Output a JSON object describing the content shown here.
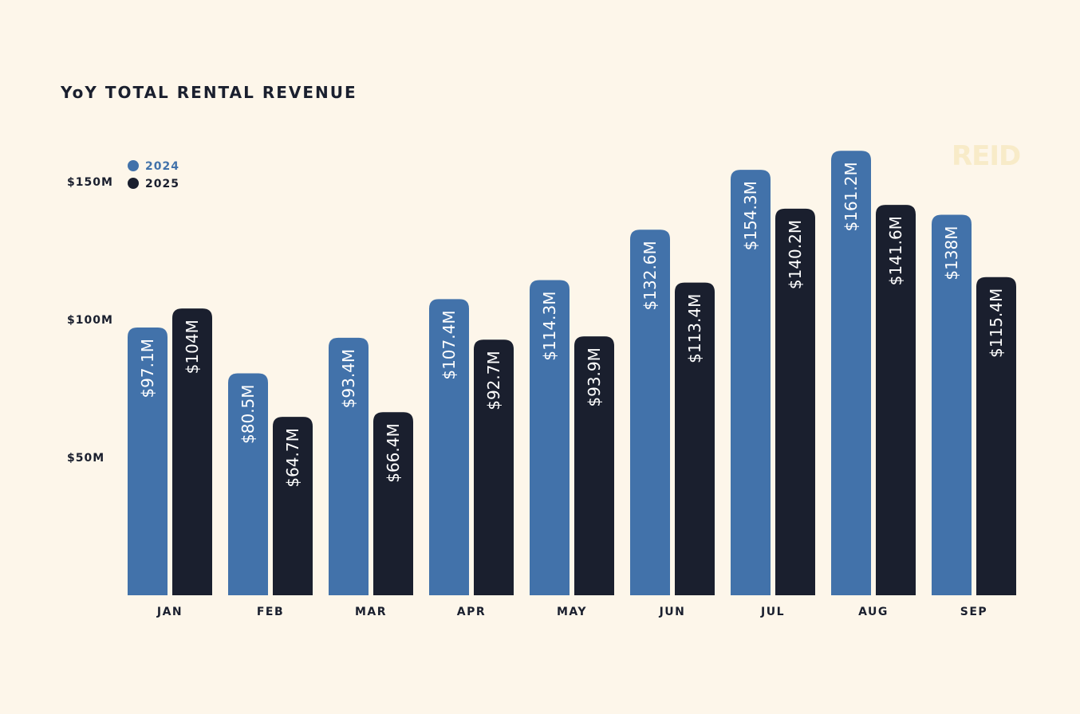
{
  "chart_data": {
    "type": "bar",
    "title": "YoY TOTAL RENTAL REVENUE",
    "watermark": "REID",
    "categories": [
      "JAN",
      "FEB",
      "MAR",
      "APR",
      "MAY",
      "JUN",
      "JUL",
      "AUG",
      "SEP"
    ],
    "series": [
      {
        "name": "2024",
        "color": "#4272aa",
        "values": [
          97.1,
          80.5,
          93.4,
          107.4,
          114.3,
          132.6,
          154.3,
          161.2,
          138
        ],
        "labels": [
          "$97.1M",
          "$80.5M",
          "$93.4M",
          "$107.4M",
          "$114.3M",
          "$132.6M",
          "$154.3M",
          "$161.2M",
          "$138M"
        ]
      },
      {
        "name": "2025",
        "color": "#1a1f2e",
        "values": [
          104,
          64.7,
          66.4,
          92.7,
          93.9,
          113.4,
          140.2,
          141.6,
          115.4
        ],
        "labels": [
          "$104M",
          "$64.7M",
          "$66.4M",
          "$92.7M",
          "$93.9M",
          "$113.4M",
          "$140.2M",
          "$141.6M",
          "$115.4M"
        ]
      }
    ],
    "yticks": [
      {
        "value": 50,
        "label": "$50M"
      },
      {
        "value": 100,
        "label": "$100M"
      },
      {
        "value": 150,
        "label": "$150M"
      }
    ],
    "ylim": [
      0,
      160
    ],
    "xlabel": "",
    "ylabel": "",
    "grid": false,
    "legend": "top-left"
  }
}
